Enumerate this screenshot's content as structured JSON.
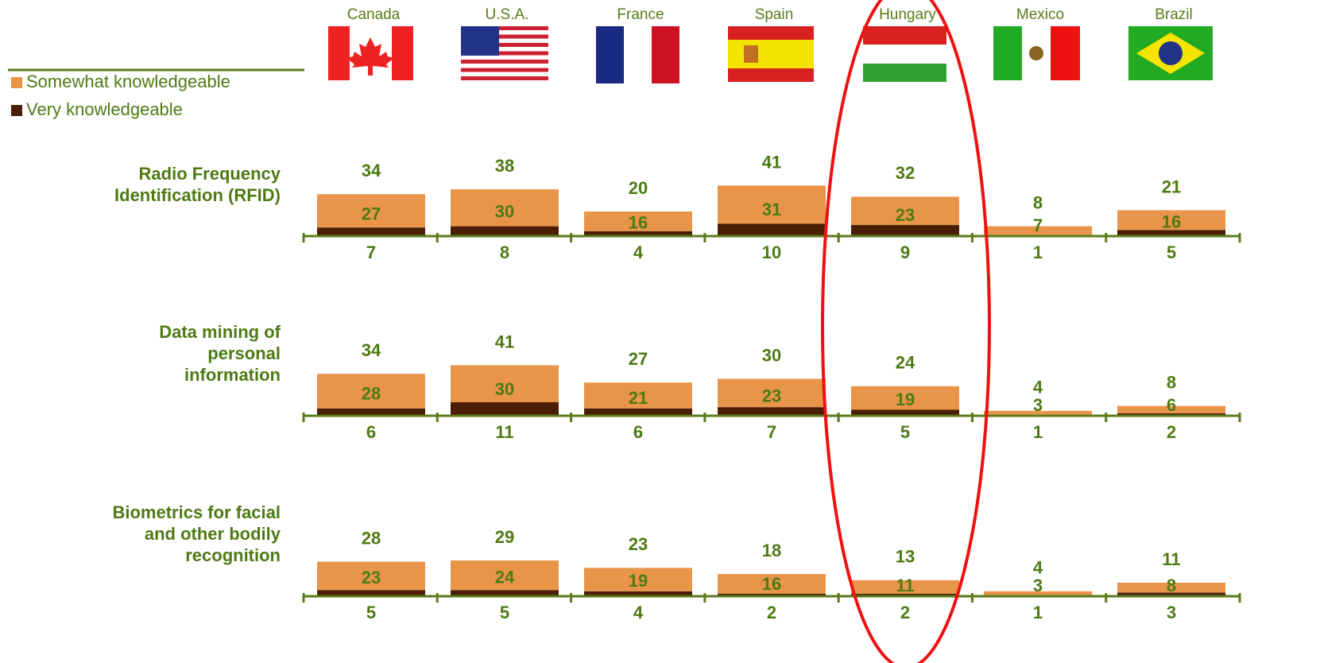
{
  "chart_data": {
    "type": "bar",
    "stacked": true,
    "categories": [
      "Canada",
      "U.S.A.",
      "France",
      "Spain",
      "Hungary",
      "Mexico",
      "Brazil"
    ],
    "series": [
      {
        "name": "Somewhat knowledgeable",
        "color": "#e8954a"
      },
      {
        "name": "Very knowledgeable",
        "color": "#4a1e05"
      }
    ],
    "panels": [
      {
        "title": [
          "Radio Frequency",
          "Identification (RFID)"
        ],
        "values": [
          [
            27,
            30,
            16,
            31,
            23,
            7,
            16
          ],
          [
            7,
            8,
            4,
            10,
            9,
            1,
            5
          ]
        ],
        "totals": [
          34,
          38,
          20,
          41,
          32,
          8,
          21
        ]
      },
      {
        "title": [
          "Data mining of",
          "personal",
          "information"
        ],
        "values": [
          [
            28,
            30,
            21,
            23,
            19,
            3,
            6
          ],
          [
            6,
            11,
            6,
            7,
            5,
            1,
            2
          ]
        ],
        "totals": [
          34,
          41,
          27,
          30,
          24,
          4,
          8
        ]
      },
      {
        "title": [
          "Biometrics for facial",
          "and other bodily",
          "recognition"
        ],
        "values": [
          [
            23,
            24,
            19,
            16,
            11,
            3,
            8
          ],
          [
            5,
            5,
            4,
            2,
            2,
            1,
            3
          ]
        ],
        "totals": [
          28,
          29,
          23,
          18,
          13,
          4,
          11
        ]
      }
    ]
  }
}
